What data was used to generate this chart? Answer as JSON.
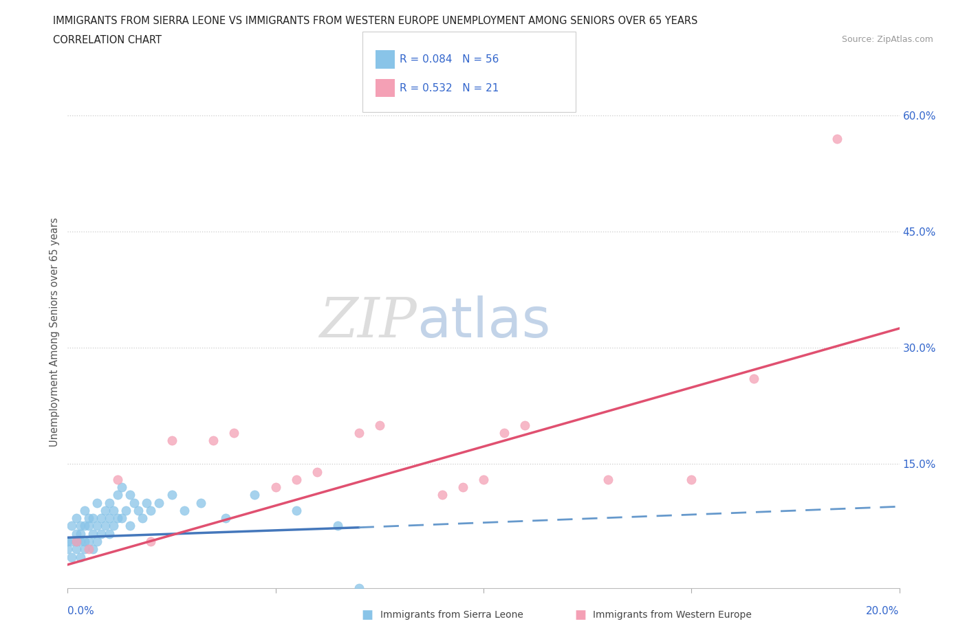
{
  "title_line1": "IMMIGRANTS FROM SIERRA LEONE VS IMMIGRANTS FROM WESTERN EUROPE UNEMPLOYMENT AMONG SENIORS OVER 65 YEARS",
  "title_line2": "CORRELATION CHART",
  "source": "Source: ZipAtlas.com",
  "ylabel": "Unemployment Among Seniors over 65 years",
  "xlim": [
    0.0,
    0.2
  ],
  "ylim": [
    -0.01,
    0.65
  ],
  "ytick_vals": [
    0.15,
    0.3,
    0.45,
    0.6
  ],
  "ytick_labels": [
    "15.0%",
    "30.0%",
    "45.0%",
    "60.0%"
  ],
  "r_sierra": 0.084,
  "n_sierra": 56,
  "r_western": 0.532,
  "n_western": 21,
  "color_sierra": "#89C4E8",
  "color_western": "#F4A0B5",
  "color_trend_sierra_solid": "#4477BB",
  "color_trend_sierra_dash": "#6699CC",
  "color_trend_western": "#E05070",
  "legend_text_color": "#3366CC",
  "watermark_zip": "ZIP",
  "watermark_atlas": "atlas",
  "sierra_leone_x": [
    0.0,
    0.0,
    0.001,
    0.001,
    0.001,
    0.002,
    0.002,
    0.002,
    0.002,
    0.003,
    0.003,
    0.003,
    0.003,
    0.004,
    0.004,
    0.004,
    0.004,
    0.005,
    0.005,
    0.005,
    0.006,
    0.006,
    0.006,
    0.007,
    0.007,
    0.007,
    0.008,
    0.008,
    0.009,
    0.009,
    0.01,
    0.01,
    0.01,
    0.011,
    0.011,
    0.012,
    0.012,
    0.013,
    0.013,
    0.014,
    0.015,
    0.015,
    0.016,
    0.017,
    0.018,
    0.019,
    0.02,
    0.022,
    0.025,
    0.028,
    0.032,
    0.038,
    0.045,
    0.055,
    0.065,
    0.07
  ],
  "sierra_leone_y": [
    0.04,
    0.05,
    0.03,
    0.05,
    0.07,
    0.04,
    0.05,
    0.06,
    0.08,
    0.03,
    0.05,
    0.06,
    0.07,
    0.04,
    0.05,
    0.07,
    0.09,
    0.05,
    0.07,
    0.08,
    0.04,
    0.06,
    0.08,
    0.05,
    0.07,
    0.1,
    0.06,
    0.08,
    0.07,
    0.09,
    0.06,
    0.08,
    0.1,
    0.07,
    0.09,
    0.08,
    0.11,
    0.08,
    0.12,
    0.09,
    0.07,
    0.11,
    0.1,
    0.09,
    0.08,
    0.1,
    0.09,
    0.1,
    0.11,
    0.09,
    0.1,
    0.08,
    0.11,
    0.09,
    0.07,
    -0.01
  ],
  "western_europe_x": [
    0.002,
    0.005,
    0.012,
    0.02,
    0.025,
    0.035,
    0.04,
    0.05,
    0.055,
    0.06,
    0.07,
    0.075,
    0.09,
    0.095,
    0.1,
    0.105,
    0.11,
    0.13,
    0.15,
    0.165,
    0.185
  ],
  "western_europe_y": [
    0.05,
    0.04,
    0.13,
    0.05,
    0.18,
    0.18,
    0.19,
    0.12,
    0.13,
    0.14,
    0.19,
    0.2,
    0.11,
    0.12,
    0.13,
    0.19,
    0.2,
    0.13,
    0.13,
    0.26,
    0.57
  ],
  "trend_sierra_x0": 0.0,
  "trend_sierra_x_solid_end": 0.07,
  "trend_sierra_x1": 0.2,
  "trend_sierra_y0": 0.055,
  "trend_sierra_y1": 0.095,
  "trend_sierra_y_solid_end": 0.068,
  "trend_western_x0": 0.0,
  "trend_western_x1": 0.2,
  "trend_western_y0": 0.02,
  "trend_western_y1": 0.325
}
